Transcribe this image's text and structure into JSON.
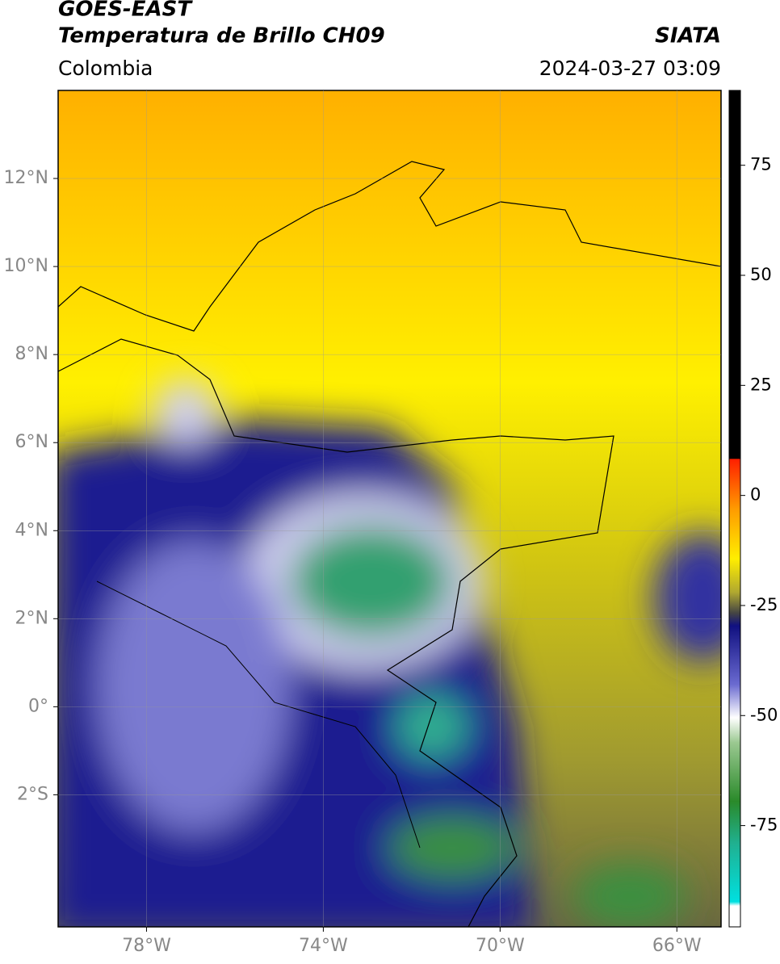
{
  "header": {
    "title": "GOES-EAST",
    "subtitle": "Temperatura de Brillo CH09",
    "source": "SIATA",
    "region": "Colombia",
    "datetime": "2024-03-27 03:09"
  },
  "map": {
    "xlim": [
      -80,
      -65
    ],
    "ylim": [
      -5,
      14
    ],
    "xticks": [
      {
        "value": -78,
        "label": "78°W"
      },
      {
        "value": -74,
        "label": "74°W"
      },
      {
        "value": -70,
        "label": "70°W"
      },
      {
        "value": -66,
        "label": "66°W"
      }
    ],
    "yticks": [
      {
        "value": 12,
        "label": "12°N"
      },
      {
        "value": 10,
        "label": "10°N"
      },
      {
        "value": 8,
        "label": "8°N"
      },
      {
        "value": 6,
        "label": "6°N"
      },
      {
        "value": 4,
        "label": "4°N"
      },
      {
        "value": 2,
        "label": "2°N"
      },
      {
        "value": 0,
        "label": "0°"
      },
      {
        "value": -2,
        "label": "2°S"
      }
    ],
    "grid": true
  },
  "colorbar": {
    "range": [
      -98,
      92
    ],
    "ticks": [
      75,
      50,
      25,
      0,
      -25,
      -50,
      -75
    ]
  }
}
